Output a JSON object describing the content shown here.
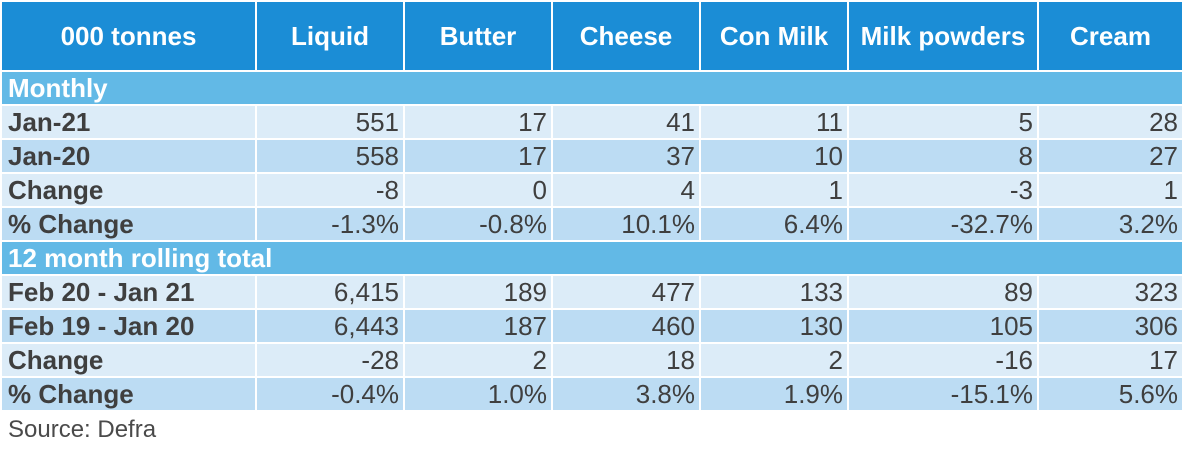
{
  "header": {
    "unit_label": "000 tonnes",
    "columns": [
      "Liquid",
      "Butter",
      "Cheese",
      "Con Milk",
      "Milk powders",
      "Cream"
    ]
  },
  "sections": [
    {
      "title": "Monthly",
      "rows": [
        {
          "label": "Jan-21",
          "values": [
            "551",
            "17",
            "41",
            "11",
            "5",
            "28"
          ]
        },
        {
          "label": "Jan-20",
          "values": [
            "558",
            "17",
            "37",
            "10",
            "8",
            "27"
          ]
        },
        {
          "label": "Change",
          "values": [
            "-8",
            "0",
            "4",
            "1",
            "-3",
            "1"
          ]
        },
        {
          "label": "% Change",
          "values": [
            "-1.3%",
            "-0.8%",
            "10.1%",
            "6.4%",
            "-32.7%",
            "3.2%"
          ]
        }
      ]
    },
    {
      "title": "12 month rolling total",
      "rows": [
        {
          "label": "Feb 20 - Jan 21",
          "values": [
            "6,415",
            "189",
            "477",
            "133",
            "89",
            "323"
          ]
        },
        {
          "label": "Feb 19 - Jan 20",
          "values": [
            "6,443",
            "187",
            "460",
            "130",
            "105",
            "306"
          ]
        },
        {
          "label": "Change",
          "values": [
            "-28",
            "2",
            "18",
            "2",
            "-16",
            "17"
          ]
        },
        {
          "label": "% Change",
          "values": [
            "-0.4%",
            "1.0%",
            "3.8%",
            "1.9%",
            "-15.1%",
            "5.6%"
          ]
        }
      ]
    }
  ],
  "source": "Source: Defra",
  "colors": {
    "header_bg": "#1b8dd6",
    "section_bg": "#62b9e6",
    "row_light": "#dcecf8",
    "row_dark": "#bcdcf3",
    "text": "#3f3f3f"
  }
}
